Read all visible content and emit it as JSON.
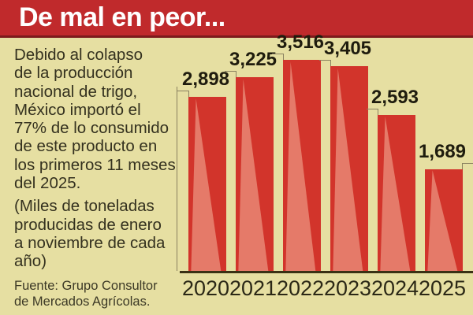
{
  "header": {
    "title": "De mal en peor...",
    "banner_color": "#c02a2c",
    "banner_underline_color": "#7d1b1c"
  },
  "intro": {
    "paragraph1": "Debido al colapso\nde la producción\nnacional de trigo,\nMéxico importó el\n77% de lo consumido\nde este producto en\nlos primeros 11 meses\ndel 2025.",
    "paragraph2": "(Miles de toneladas\nproducidas de enero\na noviembre de cada\naño)",
    "source": "Fuente: Grupo Consultor\nde Mercados Agrícolas."
  },
  "chart_data": {
    "type": "bar",
    "title": "De mal en peor...",
    "categories": [
      "2020",
      "2021",
      "2022",
      "2023",
      "2024",
      "2025"
    ],
    "values": [
      2898,
      3225,
      3516,
      3405,
      2593,
      1689
    ],
    "value_labels": [
      "2,898",
      "3,225",
      "3,516",
      "3,405",
      "2,593",
      "1,689"
    ],
    "units": "Miles de toneladas producidas de enero a noviembre de cada año",
    "xlabel": "",
    "ylabel": "",
    "ylim": [
      0,
      3600
    ],
    "grid": false,
    "legend": false,
    "background_color": "#e6dfa2",
    "bar_color": "#d2342b",
    "bar_highlight_color": "#e57a69",
    "axis_color": "#3a3114",
    "label_color": "#1f1c0e"
  }
}
